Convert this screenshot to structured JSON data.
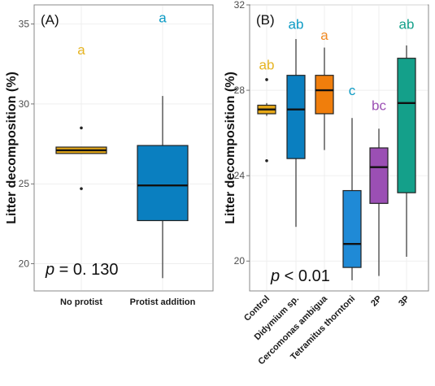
{
  "chart_data": [
    {
      "type": "box",
      "panel_label": "(A)",
      "title": "",
      "xlabel": "",
      "ylabel": "Litter decomposition (%)",
      "ylim": [
        18.3,
        36.2
      ],
      "yticks": [
        20,
        25,
        30,
        35
      ],
      "grid": true,
      "categories": [
        "No protist",
        "Protist addition"
      ],
      "boxes": [
        {
          "category": "No protist",
          "min": 26.9,
          "q1": 26.9,
          "median": 27.1,
          "q3": 27.3,
          "max": 27.3,
          "outliers": [
            28.5,
            24.7
          ],
          "color": "#e6a817",
          "letter": "a",
          "letter_color": "#e6b422",
          "letter_y": 33.4
        },
        {
          "category": "Protist addition",
          "min": 19.1,
          "q1": 22.7,
          "median": 24.9,
          "q3": 27.4,
          "max": 30.5,
          "outliers": [],
          "color": "#0a7fc0",
          "letter": "a",
          "letter_color": "#0a9ac4",
          "letter_y": 35.4
        }
      ],
      "p_prefix": "p",
      "p_text": " = 0. 130"
    },
    {
      "type": "box",
      "panel_label": "(B)",
      "title": "",
      "xlabel": "",
      "ylabel": "Litter decomposition (%)",
      "ylim": [
        18.6,
        32.0
      ],
      "yticks": [
        20,
        24,
        28,
        32
      ],
      "grid": true,
      "categories": [
        "Control",
        "Didymium sp.",
        "Cercomonas ambigua",
        "Tetramitus thorntoni",
        "2P",
        "3P"
      ],
      "boxes": [
        {
          "category": "Control",
          "min": 26.8,
          "q1": 26.9,
          "median": 27.1,
          "q3": 27.3,
          "max": 27.4,
          "outliers": [
            28.5,
            24.7
          ],
          "color": "#e6a817",
          "letter": "ab",
          "letter_color": "#e6b422",
          "letter_y": 29.2
        },
        {
          "category": "Didymium sp.",
          "min": 21.6,
          "q1": 24.8,
          "median": 27.1,
          "q3": 28.7,
          "max": 30.4,
          "outliers": [],
          "color": "#0a7fc0",
          "letter": "ab",
          "letter_color": "#0a9ac4",
          "letter_y": 31.1
        },
        {
          "category": "Cercomonas ambigua",
          "min": 25.2,
          "q1": 26.9,
          "median": 28.0,
          "q3": 28.7,
          "max": 30.0,
          "outliers": [],
          "color": "#f07e0c",
          "letter": "a",
          "letter_color": "#f08a24",
          "letter_y": 30.6
        },
        {
          "category": "Tetramitus thorntoni",
          "min": 19.1,
          "q1": 19.7,
          "median": 20.8,
          "q3": 23.3,
          "max": 26.7,
          "outliers": [],
          "color": "#1f8ad6",
          "letter": "c",
          "letter_color": "#0a9ac4",
          "letter_y": 28.0
        },
        {
          "category": "2P",
          "min": 19.3,
          "q1": 22.7,
          "median": 24.4,
          "q3": 25.3,
          "max": 26.2,
          "outliers": [],
          "color": "#9b4fb4",
          "letter": "bc",
          "letter_color": "#9b4fb4",
          "letter_y": 27.3
        },
        {
          "category": "3P",
          "min": 20.2,
          "q1": 23.2,
          "median": 27.4,
          "q3": 29.5,
          "max": 30.1,
          "outliers": [],
          "color": "#14a08a",
          "letter": "ab",
          "letter_color": "#14a08a",
          "letter_y": 31.1
        }
      ],
      "p_prefix": "p",
      "p_text": " < 0.01"
    }
  ]
}
